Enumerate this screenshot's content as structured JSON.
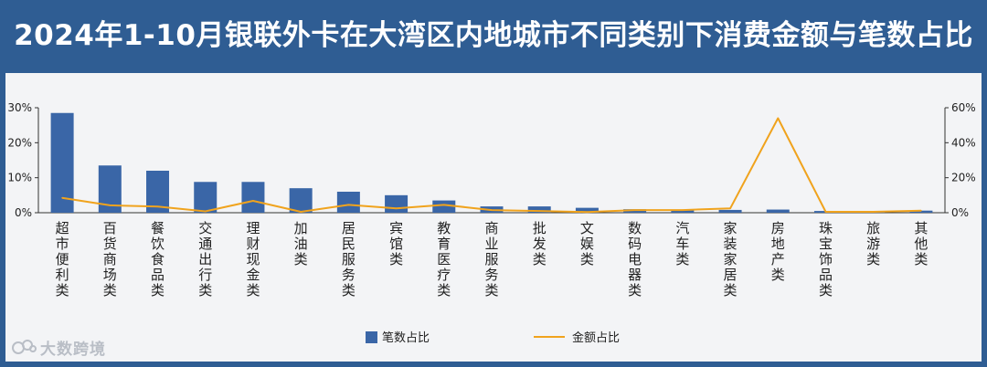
{
  "page_title": "2024年1-10月银联外卡在大湾区内地城市不同类别下消费金额与笔数占比",
  "watermark_text": "大数跨境",
  "colors": {
    "background": "#2f5d93",
    "panel": "#f3f4f6",
    "bar": "#3a66a7",
    "line": "#f0a31d",
    "axis": "#333333",
    "grid": "#d6d6d6"
  },
  "chart_data": {
    "type": "bar",
    "title": "",
    "categories": [
      "超市便利类",
      "百货商场类",
      "餐饮食品类",
      "交通出行类",
      "理财现金类",
      "加油类",
      "居民服务类",
      "宾馆类",
      "教育医疗类",
      "商业服务类",
      "批发类",
      "文娱类",
      "数码电器类",
      "汽车类",
      "家装家居类",
      "房地产类",
      "珠宝饰品类",
      "旅游类",
      "其他类"
    ],
    "series": [
      {
        "name": "笔数占比",
        "type": "bar",
        "axis": "left",
        "values": [
          28.5,
          13.5,
          12.0,
          8.8,
          8.8,
          7.0,
          6.0,
          5.0,
          3.5,
          1.8,
          1.8,
          1.4,
          1.0,
          0.9,
          0.8,
          0.9,
          0.5,
          0.5,
          0.6
        ]
      },
      {
        "name": "金额占比",
        "type": "line",
        "axis": "right",
        "values": [
          8.5,
          4.2,
          3.5,
          0.8,
          6.8,
          0.5,
          4.5,
          2.5,
          4.5,
          1.5,
          1.0,
          0.4,
          1.5,
          1.5,
          2.5,
          54.0,
          0.5,
          0.5,
          1.2
        ]
      }
    ],
    "yaxis_left": {
      "min": 0,
      "max": 30,
      "ticks": [
        "0%",
        "10%",
        "20%",
        "30%"
      ],
      "tick_values": [
        0,
        10,
        20,
        30
      ]
    },
    "yaxis_right": {
      "min": 0,
      "max": 60,
      "ticks": [
        "0%",
        "20%",
        "40%",
        "60%"
      ],
      "tick_values": [
        0,
        20,
        40,
        60
      ]
    },
    "grid": false,
    "legend": {
      "placement": "bottom-center",
      "entries": [
        "笔数占比",
        "金额占比"
      ]
    }
  }
}
